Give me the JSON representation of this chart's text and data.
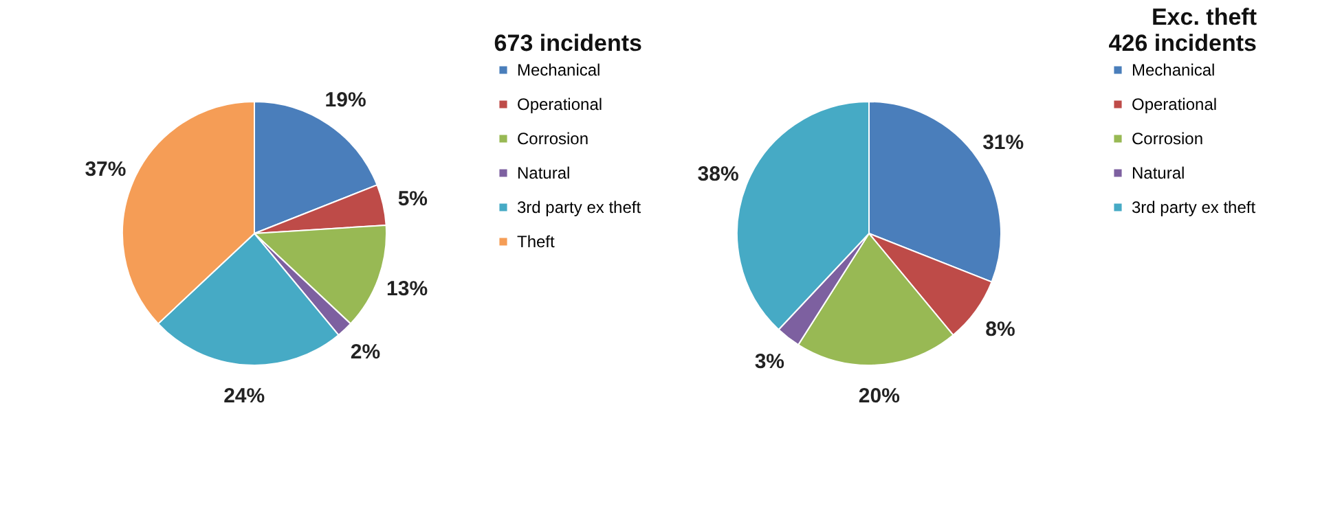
{
  "chart_data": [
    {
      "type": "pie",
      "title": "673 incidents",
      "categories": [
        "Mechanical",
        "Operational",
        "Corrosion",
        "Natural",
        "3rd party ex theft",
        "Theft"
      ],
      "values": [
        19,
        5,
        13,
        2,
        24,
        37
      ],
      "colors": [
        "#4a7ebb",
        "#be4b48",
        "#98b954",
        "#7d60a0",
        "#46aac5",
        "#f59d56"
      ],
      "value_labels": [
        "19%",
        "5%",
        "13%",
        "2%",
        "24%",
        "37%"
      ],
      "legend": "right"
    },
    {
      "type": "pie",
      "title": "Exc. theft\n426 incidents",
      "categories": [
        "Mechanical",
        "Operational",
        "Corrosion",
        "Natural",
        "3rd party ex theft"
      ],
      "values": [
        31,
        8,
        20,
        3,
        38
      ],
      "colors": [
        "#4a7ebb",
        "#be4b48",
        "#98b954",
        "#7d60a0",
        "#46aac5"
      ],
      "value_labels": [
        "31%",
        "8%",
        "20%",
        "3%",
        "38%"
      ],
      "legend": "right"
    }
  ]
}
